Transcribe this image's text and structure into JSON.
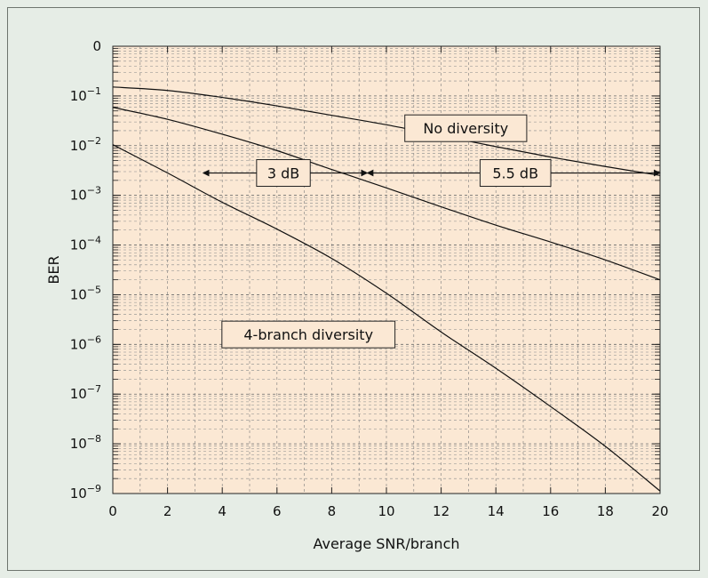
{
  "chart_data": {
    "type": "line",
    "x_label": "Average SNR/branch",
    "y_label": "BER",
    "x_range": [
      0,
      20
    ],
    "y_scale": "log",
    "y_range_decades": [
      -9,
      0
    ],
    "x_ticks": [
      "0",
      "2",
      "4",
      "6",
      "8",
      "10",
      "12",
      "14",
      "16",
      "18",
      "20"
    ],
    "y_ticks": [
      {
        "base": "0",
        "exp": ""
      },
      {
        "base": "10",
        "exp": "−1"
      },
      {
        "base": "10",
        "exp": "−2"
      },
      {
        "base": "10",
        "exp": "−3"
      },
      {
        "base": "10",
        "exp": "−4"
      },
      {
        "base": "10",
        "exp": "−5"
      },
      {
        "base": "10",
        "exp": "−6"
      },
      {
        "base": "10",
        "exp": "−7"
      },
      {
        "base": "10",
        "exp": "−8"
      },
      {
        "base": "10",
        "exp": "−9"
      }
    ],
    "grid": true,
    "background_color": "#fbe8d4",
    "page_color": "#e6ede6",
    "series": [
      {
        "name": "No diversity",
        "x": [
          0,
          2,
          4,
          6,
          8,
          10,
          12,
          14,
          16,
          18,
          20
        ],
        "log10_y": [
          -0.82,
          -0.89,
          -1.03,
          -1.2,
          -1.39,
          -1.58,
          -1.8,
          -2.02,
          -2.23,
          -2.42,
          -2.6
        ]
      },
      {
        "x": [
          0,
          2,
          4,
          6,
          8,
          10,
          12,
          14,
          16,
          18,
          20
        ],
        "log10_y": [
          -1.23,
          -1.47,
          -1.77,
          -2.1,
          -2.48,
          -2.85,
          -3.23,
          -3.6,
          -3.94,
          -4.3,
          -4.7
        ]
      },
      {
        "name": "4-branch diversity",
        "x": [
          0,
          2,
          4,
          6,
          8,
          10,
          12,
          14,
          16,
          18,
          20
        ],
        "log10_y": [
          -1.98,
          -2.55,
          -3.14,
          -3.68,
          -4.27,
          -4.97,
          -5.75,
          -6.48,
          -7.25,
          -8.05,
          -8.95
        ]
      }
    ],
    "annotations": [
      {
        "text": "3 dB",
        "arrow_from_x": 3.3,
        "arrow_to_x": 9.3,
        "log10_y": -2.55
      },
      {
        "text": "5.5 dB",
        "arrow_from_x": 9.3,
        "arrow_to_x": 20,
        "log10_y": -2.55
      }
    ]
  }
}
